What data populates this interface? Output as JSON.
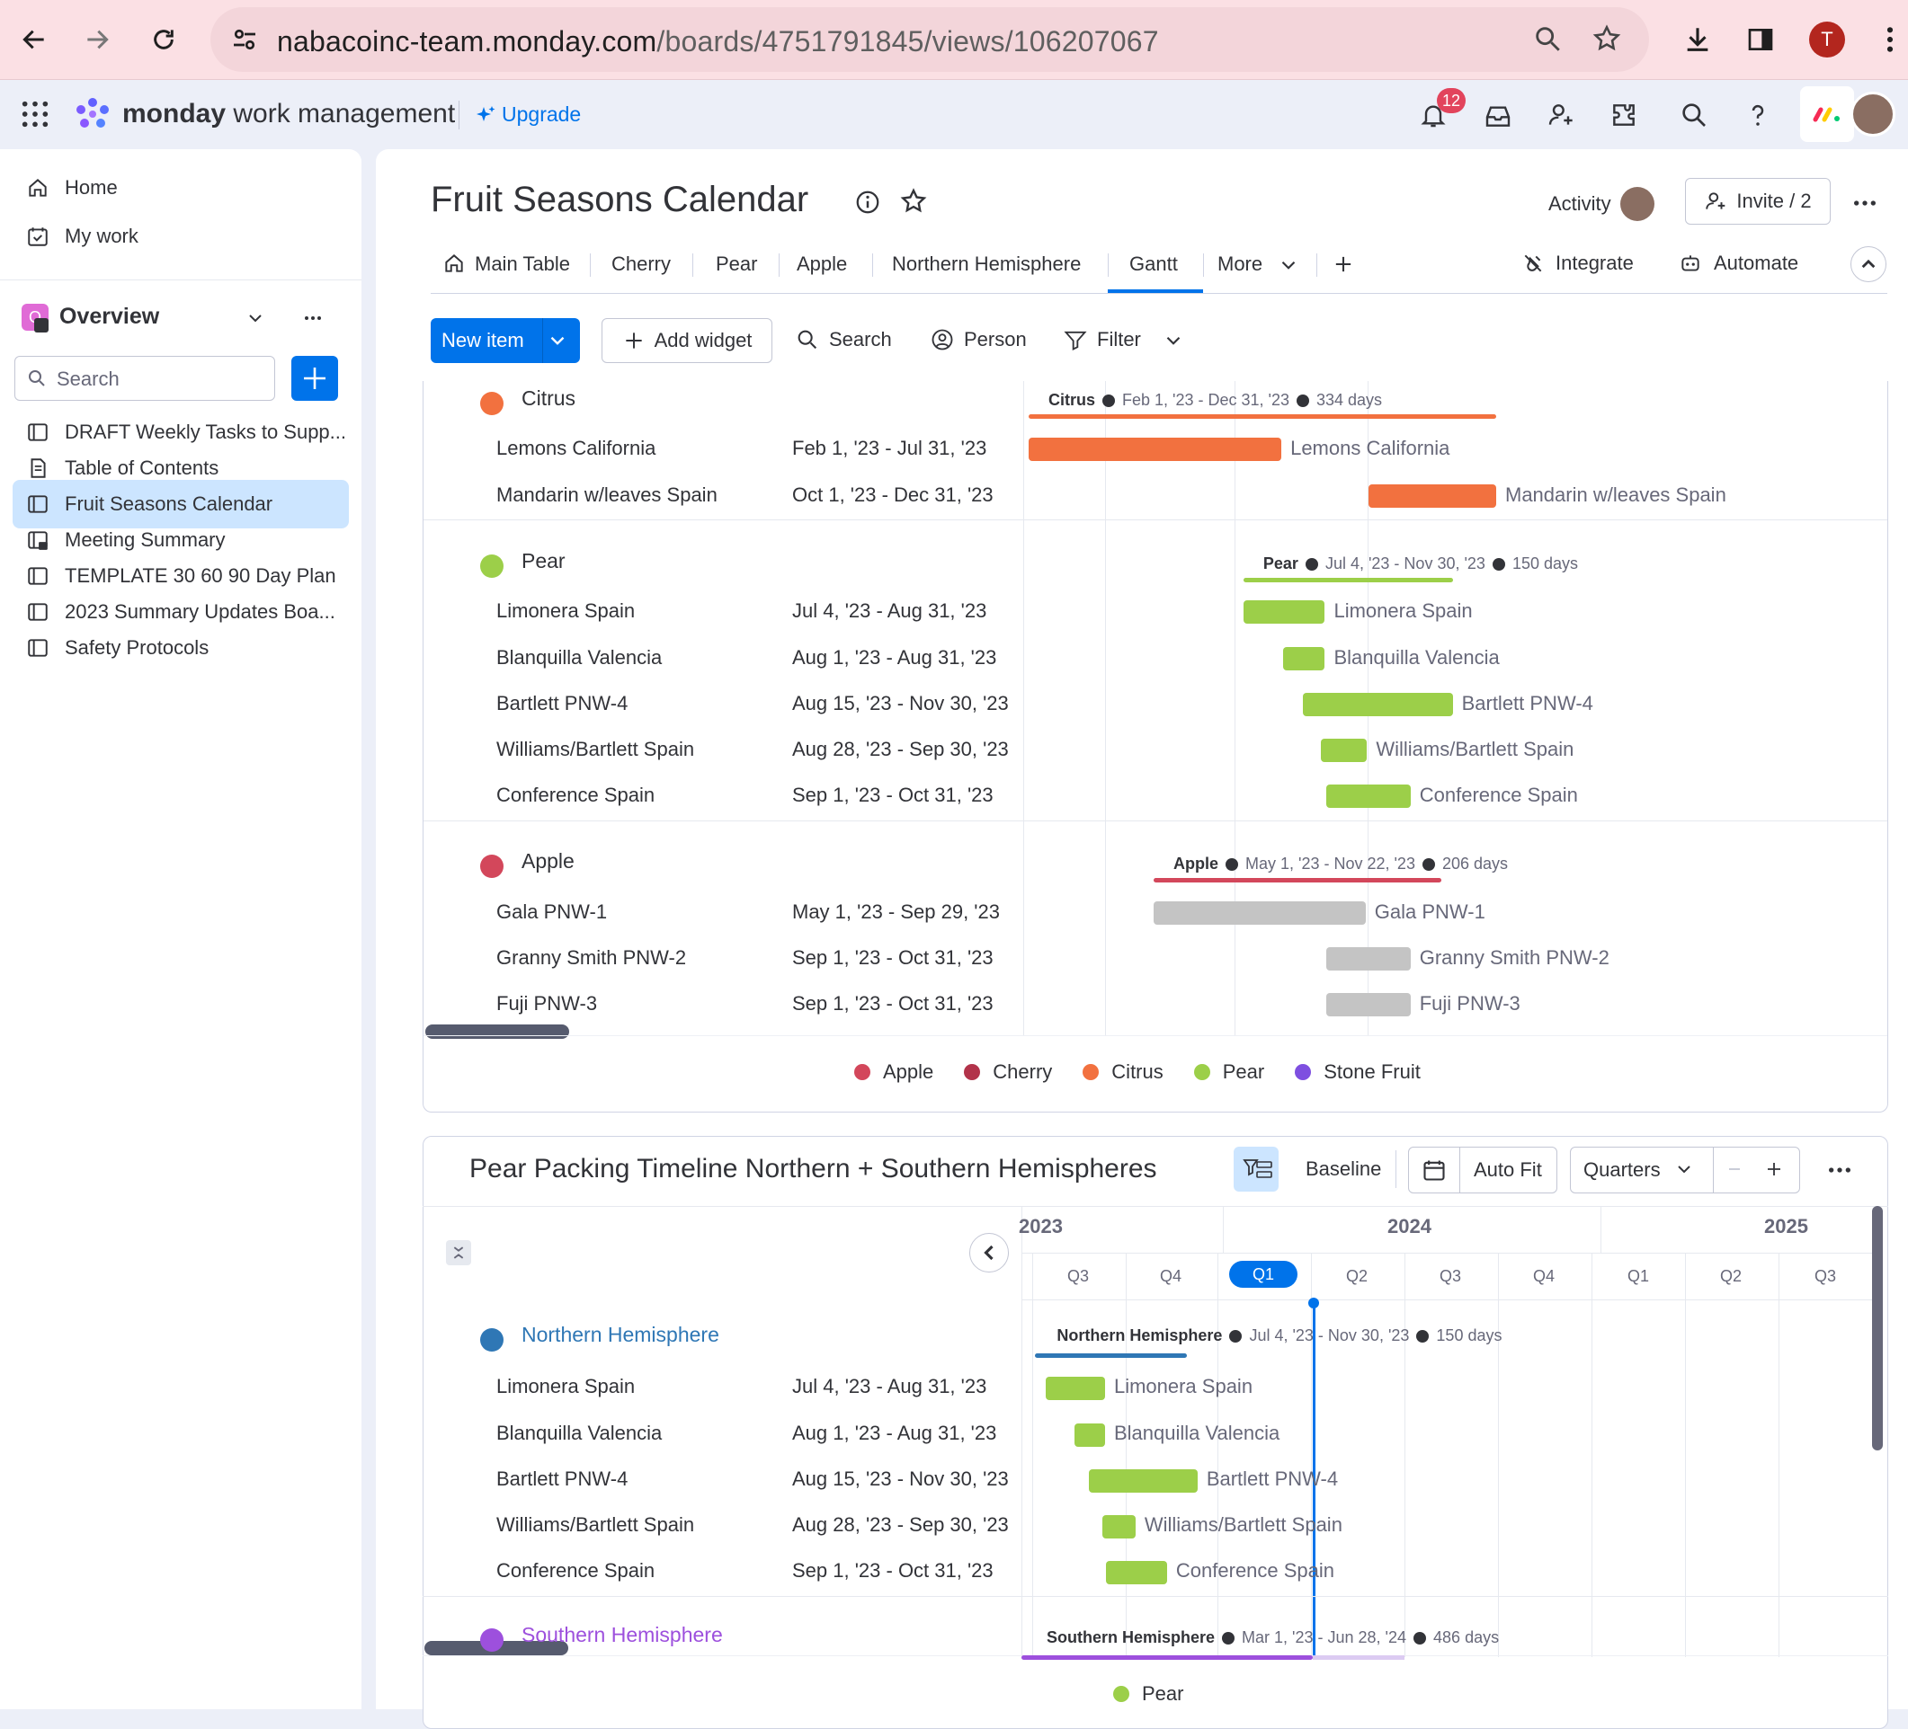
{
  "browser": {
    "url_host": "nabacoinc-team.monday.com",
    "url_path": "/boards/4751791845/views/106207067",
    "profile_initial": "T"
  },
  "app": {
    "brand": "monday",
    "brand_suffix": "work management",
    "upgrade": "Upgrade",
    "notif_count": "12"
  },
  "sidebar": {
    "items": [
      {
        "label": "Home"
      },
      {
        "label": "My work"
      }
    ],
    "workspace": "Overview",
    "search_placeholder": "Search",
    "boards": [
      {
        "label": "DRAFT Weekly Tasks to Supp..."
      },
      {
        "label": "Table of Contents"
      },
      {
        "label": "Fruit Seasons Calendar"
      },
      {
        "label": "Meeting Summary"
      },
      {
        "label": "TEMPLATE 30 60 90 Day Plan"
      },
      {
        "label": "2023 Summary Updates Boa..."
      },
      {
        "label": "Safety Protocols"
      }
    ]
  },
  "board": {
    "title": "Fruit Seasons Calendar",
    "activity": "Activity",
    "invite": "Invite / 2",
    "tabs": [
      {
        "label": "Main Table"
      },
      {
        "label": "Cherry"
      },
      {
        "label": "Pear"
      },
      {
        "label": "Apple"
      },
      {
        "label": "Northern Hemisphere"
      },
      {
        "label": "Gantt"
      },
      {
        "label": "More"
      }
    ],
    "integrate": "Integrate",
    "automate": "Automate"
  },
  "toolbar": {
    "new_item": "New item",
    "add_widget": "Add widget",
    "search": "Search",
    "person": "Person",
    "filter": "Filter"
  },
  "gantt1": {
    "groups": [
      {
        "name": "Citrus",
        "color": "#f2713f",
        "summary_name": "Citrus",
        "summary_dates": "Feb 1, '23 - Dec 31, '23",
        "summary_days": "334 days",
        "rows": [
          {
            "name": "Lemons California",
            "dates": "Feb 1, '23 - Jul 31, '23"
          },
          {
            "name": "Mandarin w/leaves Spain",
            "dates": "Oct 1, '23 - Dec 31, '23"
          }
        ]
      },
      {
        "name": "Pear",
        "color": "#9ccf49",
        "summary_name": "Pear",
        "summary_dates": "Jul 4, '23 - Nov 30, '23",
        "summary_days": "150 days",
        "rows": [
          {
            "name": "Limonera Spain",
            "dates": "Jul 4, '23 - Aug 31, '23"
          },
          {
            "name": "Blanquilla Valencia",
            "dates": "Aug 1, '23 - Aug 31, '23"
          },
          {
            "name": "Bartlett PNW-4",
            "dates": "Aug 15, '23 - Nov 30, '23"
          },
          {
            "name": "Williams/Bartlett Spain",
            "dates": "Aug 28, '23 - Sep 30, '23"
          },
          {
            "name": "Conference Spain",
            "dates": "Sep 1, '23 - Oct 31, '23"
          }
        ]
      },
      {
        "name": "Apple",
        "color": "#d3475b",
        "summary_name": "Apple",
        "summary_dates": "May 1, '23 - Nov 22, '23",
        "summary_days": "206 days",
        "rows": [
          {
            "name": "Gala PNW-1",
            "dates": "May 1, '23 - Sep 29, '23"
          },
          {
            "name": "Granny Smith PNW-2",
            "dates": "Sep 1, '23 - Oct 31, '23"
          },
          {
            "name": "Fuji PNW-3",
            "dates": "Sep 1, '23 - Oct 31, '23"
          }
        ]
      }
    ],
    "legend": [
      {
        "label": "Apple",
        "color": "#d3475b"
      },
      {
        "label": "Cherry",
        "color": "#b2334a"
      },
      {
        "label": "Citrus",
        "color": "#f2713f"
      },
      {
        "label": "Pear",
        "color": "#9ccf49"
      },
      {
        "label": "Stone Fruit",
        "color": "#7e4fe0"
      }
    ]
  },
  "gantt2": {
    "title": "Pear Packing Timeline Northern + Southern Hemispheres",
    "baseline": "Baseline",
    "autofit": "Auto Fit",
    "scale": "Quarters",
    "years": [
      {
        "label": "2023"
      },
      {
        "label": "2024"
      },
      {
        "label": "2025"
      }
    ],
    "quarters": [
      "Q3",
      "Q4",
      "Q1",
      "Q2",
      "Q3",
      "Q4",
      "Q1",
      "Q2",
      "Q3"
    ],
    "current_quarter": "Q1",
    "groups": [
      {
        "name": "Northern Hemisphere",
        "color": "#2f77b5",
        "summary_name": "Northern Hemisphere",
        "summary_dates": "Jul 4, '23 - Nov 30, '23",
        "summary_days": "150 days",
        "rows": [
          {
            "name": "Limonera Spain",
            "dates": "Jul 4, '23 - Aug 31, '23"
          },
          {
            "name": "Blanquilla Valencia",
            "dates": "Aug 1, '23 - Aug 31, '23"
          },
          {
            "name": "Bartlett PNW-4",
            "dates": "Aug 15, '23 - Nov 30, '23"
          },
          {
            "name": "Williams/Bartlett Spain",
            "dates": "Aug 28, '23 - Sep 30, '23"
          },
          {
            "name": "Conference Spain",
            "dates": "Sep 1, '23 - Oct 31, '23"
          }
        ]
      },
      {
        "name": "Southern Hemisphere",
        "color": "#9d50dd",
        "summary_name": "Southern Hemisphere",
        "summary_dates": "Mar 1, '23 - Jun 28, '24",
        "summary_days": "486 days",
        "rows": []
      }
    ],
    "legend": [
      {
        "label": "Pear",
        "color": "#9ccf49"
      }
    ]
  }
}
